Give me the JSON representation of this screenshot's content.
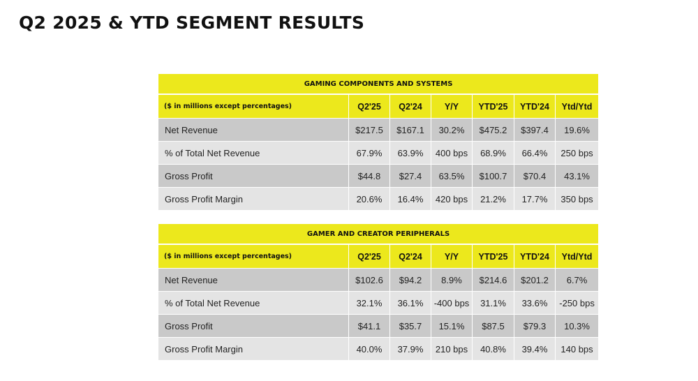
{
  "page_title": "Q2 2025 & YTD SEGMENT RESULTS",
  "tables": [
    {
      "title": "GAMING COMPONENTS AND SYSTEMS",
      "header_label": "($ in millions except percentages)",
      "columns": [
        "Q2'25",
        "Q2'24",
        "Y/Y",
        "YTD'25",
        "YTD'24",
        "Ytd/Ytd"
      ],
      "rows": [
        {
          "label": "Net Revenue",
          "values": [
            "$217.5",
            "$167.1",
            "30.2%",
            "$475.2",
            "$397.4",
            "19.6%"
          ]
        },
        {
          "label": "% of Total Net Revenue",
          "values": [
            "67.9%",
            "63.9%",
            "400 bps",
            "68.9%",
            "66.4%",
            "250 bps"
          ]
        },
        {
          "label": "Gross Profit",
          "values": [
            "$44.8",
            "$27.4",
            "63.5%",
            "$100.7",
            "$70.4",
            "43.1%"
          ]
        },
        {
          "label": "Gross Profit Margin",
          "values": [
            "20.6%",
            "16.4%",
            "420 bps",
            "21.2%",
            "17.7%",
            "350 bps"
          ]
        }
      ]
    },
    {
      "title": "GAMER AND CREATOR PERIPHERALS",
      "header_label": "($ in millions except percentages)",
      "columns": [
        "Q2'25",
        "Q2'24",
        "Y/Y",
        "YTD'25",
        "YTD'24",
        "Ytd/Ytd"
      ],
      "rows": [
        {
          "label": "Net Revenue",
          "values": [
            "$102.6",
            "$94.2",
            "8.9%",
            "$214.6",
            "$201.2",
            "6.7%"
          ]
        },
        {
          "label": "% of Total Net Revenue",
          "values": [
            "32.1%",
            "36.1%",
            "-400 bps",
            "31.1%",
            "33.6%",
            "-250 bps"
          ]
        },
        {
          "label": "Gross Profit",
          "values": [
            "$41.1",
            "$35.7",
            "15.1%",
            "$87.5",
            "$79.3",
            "10.3%"
          ]
        },
        {
          "label": "Gross Profit Margin",
          "values": [
            "40.0%",
            "37.9%",
            "210 bps",
            "40.8%",
            "39.4%",
            "140 bps"
          ]
        }
      ]
    }
  ],
  "colors": {
    "accent": "#ece81c",
    "row_dark": "#c9c9c9",
    "row_light": "#e4e4e4"
  }
}
